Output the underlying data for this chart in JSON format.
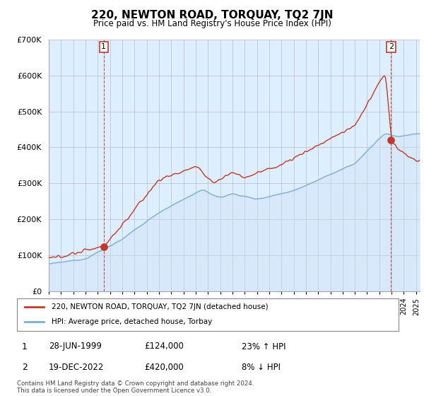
{
  "title": "220, NEWTON ROAD, TORQUAY, TQ2 7JN",
  "subtitle": "Price paid vs. HM Land Registry's House Price Index (HPI)",
  "ylabel_ticks": [
    "£0",
    "£100K",
    "£200K",
    "£300K",
    "£400K",
    "£500K",
    "£600K",
    "£700K"
  ],
  "ylim": [
    0,
    700000
  ],
  "xlim_start": 1995.0,
  "xlim_end": 2025.3,
  "hpi_color": "#7bafd4",
  "hpi_fill_color": "#ccdff0",
  "price_color": "#c0392b",
  "chart_bg": "#ddeeff",
  "sale1_date": 1999.49,
  "sale1_price": 124000,
  "sale2_date": 2022.96,
  "sale2_price": 420000,
  "legend_line1": "220, NEWTON ROAD, TORQUAY, TQ2 7JN (detached house)",
  "legend_line2": "HPI: Average price, detached house, Torbay",
  "annotation1_date": "28-JUN-1999",
  "annotation1_price": "£124,000",
  "annotation1_hpi": "23% ↑ HPI",
  "annotation2_date": "19-DEC-2022",
  "annotation2_price": "£420,000",
  "annotation2_hpi": "8% ↓ HPI",
  "footer": "Contains HM Land Registry data © Crown copyright and database right 2024.\nThis data is licensed under the Open Government Licence v3.0.",
  "bg_color": "#ffffff",
  "grid_color": "#bbbbcc"
}
